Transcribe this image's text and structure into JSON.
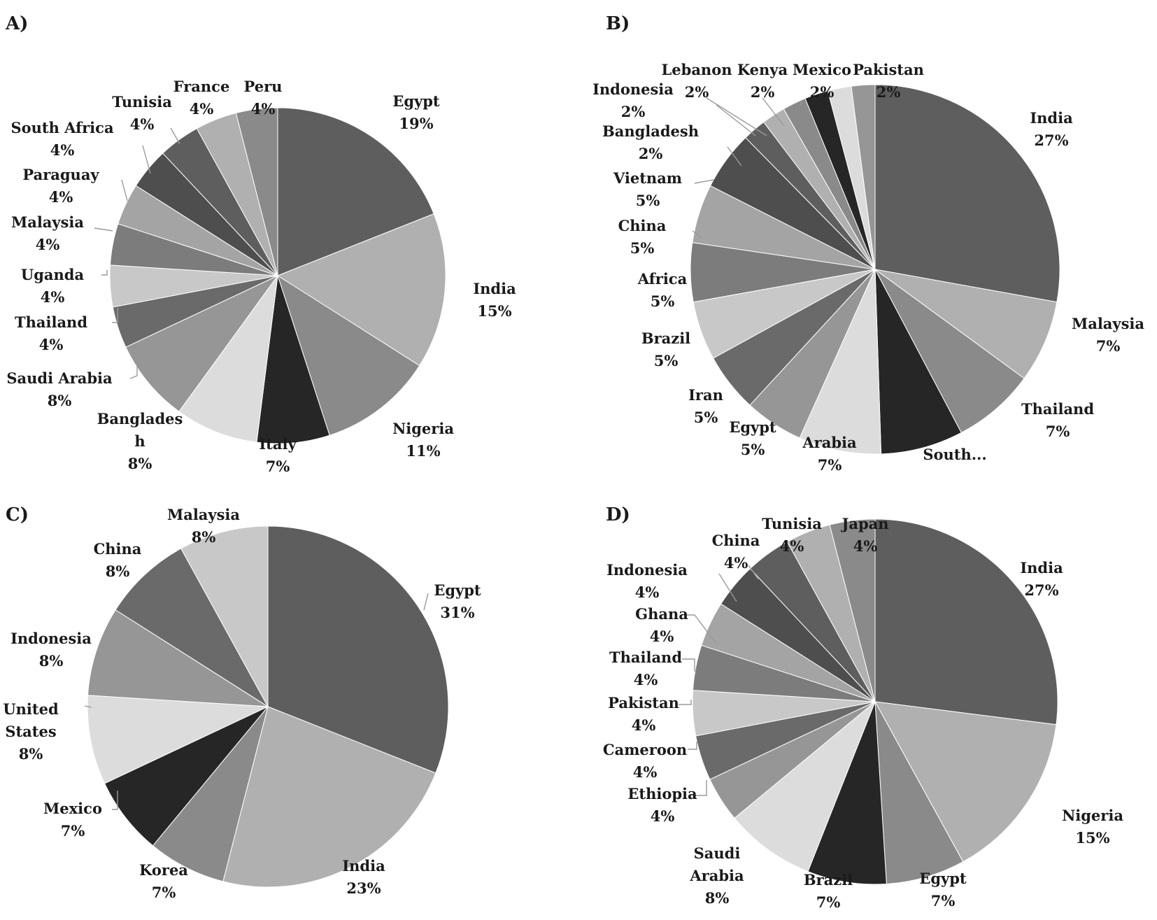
{
  "colors": {
    "palette": [
      "#5e5e5e",
      "#b0b0b0",
      "#8a8a8a",
      "#262626",
      "#dcdcdc",
      "#969696",
      "#6a6a6a",
      "#c8c8c8",
      "#7c7c7c",
      "#a4a4a4",
      "#4e4e4e"
    ]
  },
  "chart_data": [
    {
      "panel": "A)",
      "type": "pie",
      "slices": [
        {
          "label": "Egypt",
          "percent": "19%",
          "value": 19
        },
        {
          "label": "India",
          "percent": "15%",
          "value": 15
        },
        {
          "label": "Nigeria",
          "percent": "11%",
          "value": 11
        },
        {
          "label": "Italy",
          "percent": "7%",
          "value": 7
        },
        {
          "label": "Banglades h",
          "percent": "8%",
          "value": 8
        },
        {
          "label": "Saudi Arabia",
          "percent": "8%",
          "value": 8
        },
        {
          "label": "Thailand",
          "percent": "4%",
          "value": 4
        },
        {
          "label": "Uganda",
          "percent": "4%",
          "value": 4
        },
        {
          "label": "Malaysia",
          "percent": "4%",
          "value": 4
        },
        {
          "label": "Paraguay",
          "percent": "4%",
          "value": 4
        },
        {
          "label": "South Africa",
          "percent": "4%",
          "value": 4
        },
        {
          "label": "Tunisia",
          "percent": "4%",
          "value": 4
        },
        {
          "label": "France",
          "percent": "4%",
          "value": 4
        },
        {
          "label": "Peru",
          "percent": "4%",
          "value": 4
        }
      ]
    },
    {
      "panel": "B)",
      "type": "pie",
      "slices": [
        {
          "label": "India",
          "percent": "27%",
          "value": 27
        },
        {
          "label": "Malaysia",
          "percent": "7%",
          "value": 7
        },
        {
          "label": "Thailand",
          "percent": "7%",
          "value": 7
        },
        {
          "label": "South...",
          "percent": "",
          "value": 7
        },
        {
          "label": "Arabia",
          "percent": "7%",
          "value": 7
        },
        {
          "label": "Egypt",
          "percent": "5%",
          "value": 5
        },
        {
          "label": "Iran",
          "percent": "5%",
          "value": 5
        },
        {
          "label": "Brazil",
          "percent": "5%",
          "value": 5
        },
        {
          "label": "Africa",
          "percent": "5%",
          "value": 5
        },
        {
          "label": "China",
          "percent": "5%",
          "value": 5
        },
        {
          "label": "Vietnam",
          "percent": "5%",
          "value": 5
        },
        {
          "label": "Bangladesh",
          "percent": "2%",
          "value": 2
        },
        {
          "label": "Indonesia",
          "percent": "2%",
          "value": 2
        },
        {
          "label": "Lebanon",
          "percent": "2%",
          "value": 2
        },
        {
          "label": "Kenya",
          "percent": "2%",
          "value": 2
        },
        {
          "label": "Mexico",
          "percent": "2%",
          "value": 2
        },
        {
          "label": "Pakistan",
          "percent": "2%",
          "value": 2
        }
      ]
    },
    {
      "panel": "C)",
      "type": "pie",
      "slices": [
        {
          "label": "Egypt",
          "percent": "31%",
          "value": 31
        },
        {
          "label": "India",
          "percent": "23%",
          "value": 23
        },
        {
          "label": "Korea",
          "percent": "7%",
          "value": 7
        },
        {
          "label": "Mexico",
          "percent": "7%",
          "value": 7
        },
        {
          "label": "United States",
          "percent": "8%",
          "value": 8
        },
        {
          "label": "Indonesia",
          "percent": "8%",
          "value": 8
        },
        {
          "label": "China",
          "percent": "8%",
          "value": 8
        },
        {
          "label": "Malaysia",
          "percent": "8%",
          "value": 8
        }
      ]
    },
    {
      "panel": "D)",
      "type": "pie",
      "slices": [
        {
          "label": "India",
          "percent": "27%",
          "value": 27
        },
        {
          "label": "Nigeria",
          "percent": "15%",
          "value": 15
        },
        {
          "label": "Egypt",
          "percent": "7%",
          "value": 7
        },
        {
          "label": "Brazil",
          "percent": "7%",
          "value": 7
        },
        {
          "label": "Saudi Arabia",
          "percent": "8%",
          "value": 8
        },
        {
          "label": "Ethiopia",
          "percent": "4%",
          "value": 4
        },
        {
          "label": "Cameroon",
          "percent": "4%",
          "value": 4
        },
        {
          "label": "Pakistan",
          "percent": "4%",
          "value": 4
        },
        {
          "label": "Thailand",
          "percent": "4%",
          "value": 4
        },
        {
          "label": "Ghana",
          "percent": "4%",
          "value": 4
        },
        {
          "label": "Indonesia",
          "percent": "4%",
          "value": 4
        },
        {
          "label": "China",
          "percent": "4%",
          "value": 4
        },
        {
          "label": "Tunisia",
          "percent": "4%",
          "value": 4
        },
        {
          "label": "Japan",
          "percent": "4%",
          "value": 4
        }
      ]
    }
  ]
}
